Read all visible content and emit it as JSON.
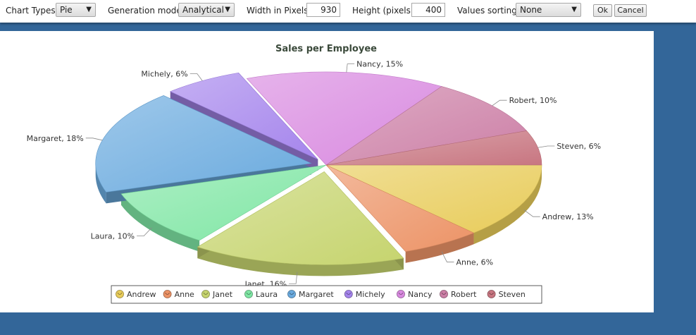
{
  "toolbar": {
    "chart_types_label": "Chart Types",
    "chart_type_value": "Pie",
    "generation_mode_label": "Generation mode",
    "generation_mode_value": "Analytical",
    "width_label": "Width in Pixels",
    "width_value": "930",
    "height_label": "Height (pixels)",
    "height_value": "400",
    "sorting_label": "Values sorting",
    "sorting_value": "None",
    "ok_label": "Ok",
    "cancel_label": "Cancel"
  },
  "chart_data": {
    "type": "pie",
    "title": "Sales per Employee",
    "legend_position": "bottom",
    "slices": [
      {
        "name": "Andrew",
        "value": 13,
        "label": "Andrew, 13%",
        "color": "#e8cc5a",
        "exploded": false
      },
      {
        "name": "Anne",
        "value": 6,
        "label": "Anne, 6%",
        "color": "#ec9366",
        "exploded": false
      },
      {
        "name": "Janet",
        "value": 16,
        "label": "Janet, 16%",
        "color": "#c6d46e",
        "exploded": true
      },
      {
        "name": "Laura",
        "value": 10,
        "label": "Laura, 10%",
        "color": "#7fe6a4",
        "exploded": false
      },
      {
        "name": "Margaret",
        "value": 18,
        "label": "Margaret, 18%",
        "color": "#6aaade",
        "exploded": true
      },
      {
        "name": "Michely",
        "value": 6,
        "label": "Michely, 6%",
        "color": "#a585ec",
        "exploded": true
      },
      {
        "name": "Nancy",
        "value": 15,
        "label": "Nancy, 15%",
        "color": "#d98ae0",
        "exploded": false
      },
      {
        "name": "Robert",
        "value": 10,
        "label": "Robert, 10%",
        "color": "#cc7fa6",
        "exploded": false
      },
      {
        "name": "Steven",
        "value": 6,
        "label": "Steven, 6%",
        "color": "#c87681",
        "exploded": false
      }
    ]
  }
}
